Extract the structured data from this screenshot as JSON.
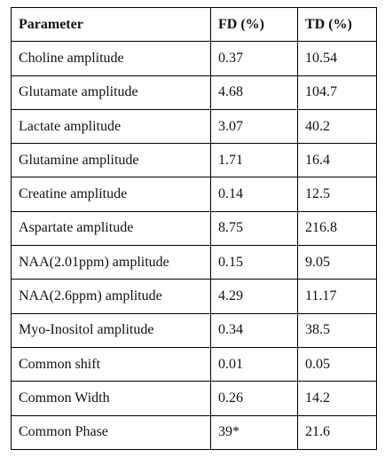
{
  "table": {
    "header": [
      "Parameter",
      "FD (%)",
      "TD (%)"
    ],
    "rows": [
      [
        "Choline amplitude",
        "0.37",
        "10.54"
      ],
      [
        "Glutamate amplitude",
        "4.68",
        "104.7"
      ],
      [
        "Lactate amplitude",
        "3.07",
        "40.2"
      ],
      [
        "Glutamine amplitude",
        "1.71",
        "16.4"
      ],
      [
        "Creatine amplitude",
        "0.14",
        "12.5"
      ],
      [
        "Aspartate amplitude",
        "8.75",
        "216.8"
      ],
      [
        "NAA(2.01ppm) amplitude",
        "0.15",
        "9.05"
      ],
      [
        "NAA(2.6ppm) amplitude",
        "4.29",
        "11.17"
      ],
      [
        "Myo-Inositol amplitude",
        "0.34",
        "38.5"
      ],
      [
        "Common shift",
        "0.01",
        "0.05"
      ],
      [
        "Common Width",
        "0.26",
        "14.2"
      ],
      [
        "Common Phase",
        "39*",
        "21.6"
      ]
    ]
  }
}
